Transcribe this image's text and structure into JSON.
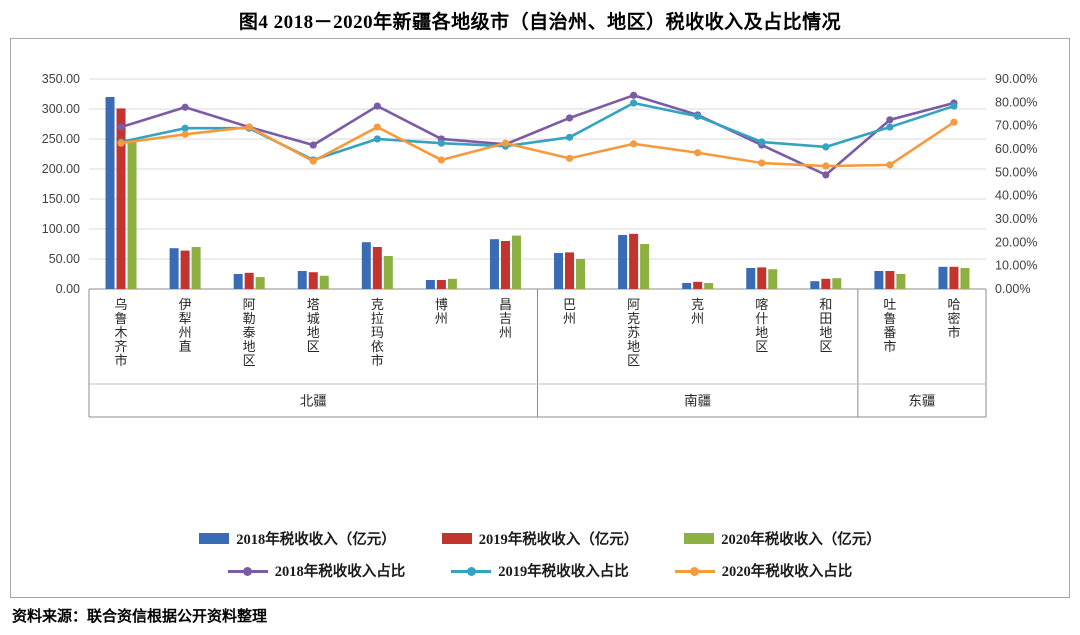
{
  "title": "图4 2018－2020年新疆各地级市（自治州、地区）税收收入及占比情况",
  "source": "资料来源：联合资信根据公开资料整理",
  "chart_data": {
    "type": "bar+line",
    "categories": [
      "乌鲁木齐市",
      "伊犁州直",
      "阿勒泰地区",
      "塔城地区",
      "克拉玛依市",
      "博州",
      "昌吉州",
      "巴州",
      "阿克苏地区",
      "克州",
      "喀什地区",
      "和田地区",
      "吐鲁番市",
      "哈密市"
    ],
    "groups": [
      {
        "label": "北疆",
        "span": 7
      },
      {
        "label": "南疆",
        "span": 5
      },
      {
        "label": "东疆",
        "span": 2
      }
    ],
    "left_axis": {
      "min": 0,
      "max": 350,
      "step": 50,
      "unit": "亿元"
    },
    "right_axis": {
      "min": 0,
      "max": 90,
      "step": 10,
      "unit": "%"
    },
    "bar_series": [
      {
        "name": "2018年税收收入（亿元）",
        "color": "#3a6bb5",
        "values": [
          320,
          68,
          25,
          30,
          78,
          15,
          83,
          60,
          90,
          10,
          35,
          13,
          30,
          37
        ]
      },
      {
        "name": "2019年税收收入（亿元）",
        "color": "#c3342f",
        "values": [
          301,
          64,
          27,
          28,
          70,
          15,
          80,
          61,
          92,
          12,
          36,
          17,
          30,
          37
        ]
      },
      {
        "name": "2020年税收收入（亿元）",
        "color": "#8cb041",
        "values": [
          245,
          70,
          20,
          22,
          55,
          17,
          89,
          50,
          75,
          10,
          33,
          18,
          25,
          35
        ]
      }
    ],
    "line_series": [
      {
        "name": "2018年税收收入占比",
        "color": "#7b5ba5",
        "values": [
          69.4,
          77.9,
          69.4,
          61.7,
          78.4,
          64.3,
          62.0,
          73.3,
          83.0,
          74.6,
          61.7,
          48.9,
          72.5,
          79.7
        ]
      },
      {
        "name": "2019年税收收入占比",
        "color": "#35a2c1",
        "values": [
          63.0,
          68.9,
          68.9,
          55.3,
          64.3,
          62.5,
          61.2,
          65.0,
          79.7,
          74.0,
          63.0,
          60.9,
          69.4,
          78.4
        ]
      },
      {
        "name": "2020年税收收入占比",
        "color": "#f59a3d",
        "values": [
          62.5,
          66.3,
          69.4,
          54.8,
          69.4,
          55.3,
          62.5,
          56.0,
          62.2,
          58.4,
          54.0,
          52.7,
          53.2,
          71.5
        ]
      }
    ]
  }
}
